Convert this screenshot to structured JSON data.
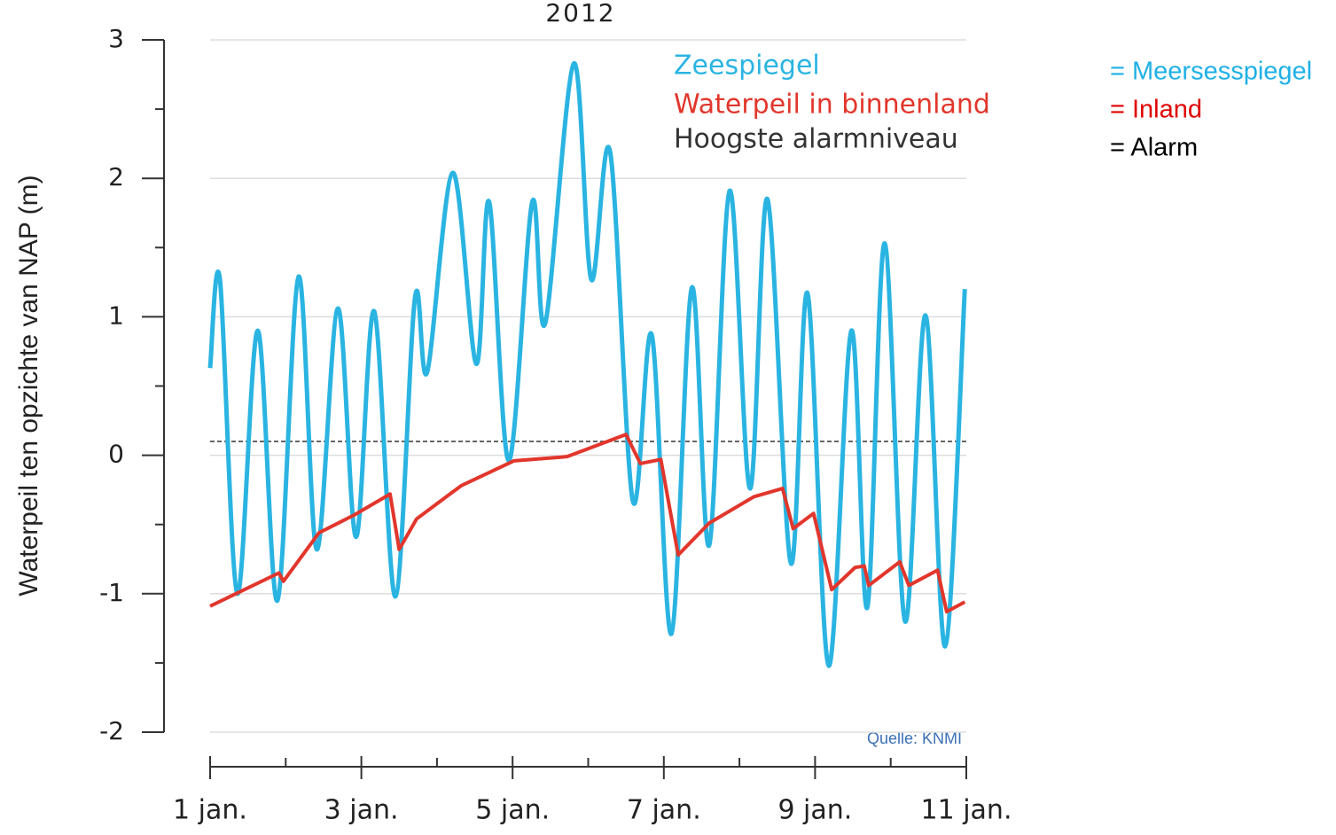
{
  "chart_data": {
    "type": "line",
    "title": "2012",
    "y_label": "Waterpeil ten opzichte van NAP (m)",
    "source": "Quelle: KNMI",
    "xlim": [
      1,
      11
    ],
    "xticks": [
      {
        "value": 1,
        "label": "1 jan."
      },
      {
        "value": 3,
        "label": "3 jan."
      },
      {
        "value": 5,
        "label": "5 jan."
      },
      {
        "value": 7,
        "label": "7 jan."
      },
      {
        "value": 9,
        "label": "9 jan."
      },
      {
        "value": 11,
        "label": "11 jan."
      }
    ],
    "xminorticks": [
      2,
      4,
      6,
      8,
      10
    ],
    "ylim": [
      -2,
      3
    ],
    "yticks": [
      -2,
      -1,
      0,
      1,
      2,
      3
    ],
    "yminorticks": [
      -1.5,
      -0.5,
      0.5,
      1.5,
      2.5
    ],
    "grid": true,
    "series": [
      {
        "name": "Zeespiegel",
        "color": "#2ab4e2",
        "smooth": true,
        "x": [
          1.0,
          1.13,
          1.36,
          1.63,
          1.89,
          2.17,
          2.41,
          2.69,
          2.93,
          3.17,
          3.45,
          3.71,
          3.87,
          4.21,
          4.52,
          4.69,
          4.95,
          5.26,
          5.43,
          5.81,
          6.04,
          6.29,
          6.59,
          6.84,
          7.1,
          7.37,
          7.6,
          7.87,
          8.14,
          8.37,
          8.68,
          8.9,
          9.18,
          9.48,
          9.69,
          9.92,
          10.19,
          10.46,
          10.72,
          10.98
        ],
        "values": [
          0.63,
          1.27,
          -1.0,
          0.9,
          -1.05,
          1.29,
          -0.68,
          1.06,
          -0.59,
          1.04,
          -1.02,
          1.14,
          0.6,
          2.04,
          0.66,
          1.83,
          -0.04,
          1.83,
          0.95,
          2.83,
          1.27,
          2.19,
          -0.33,
          0.87,
          -1.29,
          1.21,
          -0.65,
          1.91,
          -0.24,
          1.85,
          -0.78,
          1.17,
          -1.52,
          0.9,
          -1.1,
          1.53,
          -1.2,
          1.01,
          -1.38,
          1.2
        ]
      },
      {
        "name": "Waterpeil in binnenland",
        "color": "#e2362c",
        "smooth": false,
        "x": [
          1.0,
          1.91,
          1.97,
          2.44,
          2.91,
          3.38,
          3.5,
          3.73,
          4.32,
          5.02,
          5.72,
          6.5,
          6.69,
          6.96,
          7.19,
          7.6,
          8.19,
          8.57,
          8.71,
          8.98,
          9.22,
          9.53,
          9.65,
          9.71,
          10.12,
          10.24,
          10.62,
          10.74,
          10.98
        ],
        "values": [
          -1.09,
          -0.85,
          -0.91,
          -0.56,
          -0.43,
          -0.28,
          -0.68,
          -0.46,
          -0.22,
          -0.04,
          -0.01,
          0.15,
          -0.06,
          -0.03,
          -0.72,
          -0.49,
          -0.3,
          -0.24,
          -0.53,
          -0.42,
          -0.97,
          -0.81,
          -0.8,
          -0.94,
          -0.77,
          -0.94,
          -0.83,
          -1.13,
          -1.06
        ]
      }
    ],
    "alarm": {
      "name": "Hoogste alarmniveau",
      "value": 0.1,
      "color": "#333333"
    },
    "annotations": [
      {
        "text": "= Meersesspiegel",
        "color": "#1fb0e6"
      },
      {
        "text": "= Inland",
        "color": "#e00000"
      },
      {
        "text": "= Alarm",
        "color": "#000000"
      }
    ]
  }
}
